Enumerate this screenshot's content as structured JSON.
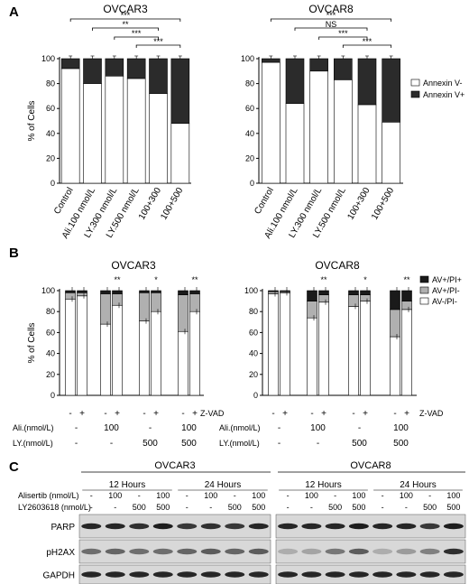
{
  "panels": {
    "A": {
      "letter": "A",
      "ylabel": "% of Cells",
      "yticks": [
        "0",
        "20",
        "40",
        "60",
        "80",
        "100"
      ],
      "legend": [
        "Annexin V-",
        "Annexin V+"
      ],
      "colors": {
        "neg": "#ffffff",
        "pos": "#2b2b2b",
        "stroke": "#000000"
      }
    },
    "B": {
      "letter": "B",
      "ylabel": "% of Cells",
      "yticks": [
        "0",
        "20",
        "40",
        "60",
        "80",
        "100"
      ],
      "legend": [
        "AV+/PI+",
        "AV+/PI-",
        "AV-/PI-"
      ],
      "colors": {
        "pi_pos": "#1a1a1a",
        "pi_neg": "#b0b0b0",
        "neg": "#ffffff"
      },
      "row_labels": {
        "zvad": "Z-VAD",
        "ali": "Ali.(nmol/L)",
        "ly": "LY.(nmol/L)"
      },
      "zvad_marks": [
        "-",
        "+",
        "-",
        "+",
        "-",
        "+",
        "-",
        "+"
      ],
      "ali_marks": [
        "-",
        "100",
        "-",
        "100"
      ],
      "ly_marks": [
        "-",
        "-",
        "500",
        "500"
      ]
    },
    "C": {
      "letter": "C",
      "row_labels": {
        "alisertib": "Alisertib (nmol/L)",
        "ly": "LY2603618 (nmol/L)"
      },
      "proteins": [
        "PARP",
        "pH2AX",
        "GAPDH"
      ],
      "cell_lines": [
        "OVCAR3",
        "OVCAR8"
      ],
      "timepoints": [
        "12 Hours",
        "24 Hours"
      ],
      "alisertib_marks": [
        "-",
        "100",
        "-",
        "100"
      ],
      "ly_marks": [
        "-",
        "-",
        "500",
        "500"
      ]
    }
  },
  "chart_data": [
    {
      "type": "bar",
      "panel": "A",
      "title": "OVCAR3",
      "ylabel": "% of Cells",
      "ylim": [
        0,
        100
      ],
      "stacked": true,
      "categories": [
        "Control",
        "Ali.100 nmol/L",
        "LY.300 nmol/L",
        "LY.500 nmol/L",
        "100+300",
        "100+500"
      ],
      "series": [
        {
          "name": "Annexin V-",
          "values": [
            92,
            80,
            86,
            84,
            72,
            48
          ]
        },
        {
          "name": "Annexin V+",
          "values": [
            8,
            20,
            14,
            16,
            28,
            52
          ]
        }
      ],
      "significance": [
        {
          "from": 0,
          "to": 5,
          "label": "***"
        },
        {
          "from": 1,
          "to": 4,
          "label": "**"
        },
        {
          "from": 2,
          "to": 4,
          "label": "***"
        },
        {
          "from": 3,
          "to": 5,
          "label": "***"
        }
      ]
    },
    {
      "type": "bar",
      "panel": "A",
      "title": "OVCAR8",
      "ylabel": "% of Cells",
      "ylim": [
        0,
        100
      ],
      "stacked": true,
      "categories": [
        "Control",
        "Ali.100 nmol/L",
        "LY.300 nmol/L",
        "LY.500 nmol/L",
        "100+300",
        "100+500"
      ],
      "series": [
        {
          "name": "Annexin V-",
          "values": [
            97,
            64,
            90,
            83,
            63,
            49
          ]
        },
        {
          "name": "Annexin V+",
          "values": [
            3,
            36,
            10,
            17,
            37,
            51
          ]
        }
      ],
      "significance": [
        {
          "from": 0,
          "to": 5,
          "label": "***"
        },
        {
          "from": 1,
          "to": 4,
          "label": "NS"
        },
        {
          "from": 2,
          "to": 4,
          "label": "***"
        },
        {
          "from": 3,
          "to": 5,
          "label": "***"
        }
      ]
    },
    {
      "type": "bar",
      "panel": "B",
      "title": "OVCAR3",
      "ylabel": "% of Cells",
      "ylim": [
        0,
        100
      ],
      "stacked": true,
      "series": [
        {
          "name": "AV-/PI-",
          "values": [
            92,
            95,
            68,
            86,
            71,
            80,
            61,
            80
          ]
        },
        {
          "name": "AV+/PI-",
          "values": [
            6,
            3,
            29,
            11,
            27,
            18,
            35,
            17
          ]
        },
        {
          "name": "AV+/PI+",
          "values": [
            2,
            2,
            3,
            3,
            2,
            2,
            4,
            3
          ]
        }
      ],
      "significance": [
        {
          "group": 1,
          "label": "**"
        },
        {
          "group": 2,
          "label": "*"
        },
        {
          "group": 3,
          "label": "**"
        }
      ]
    },
    {
      "type": "bar",
      "panel": "B",
      "title": "OVCAR8",
      "ylabel": "% of Cells",
      "ylim": [
        0,
        100
      ],
      "stacked": true,
      "series": [
        {
          "name": "AV-/PI-",
          "values": [
            97,
            98,
            74,
            89,
            85,
            90,
            56,
            82
          ]
        },
        {
          "name": "AV+/PI-",
          "values": [
            2,
            1,
            16,
            7,
            11,
            6,
            26,
            8
          ]
        },
        {
          "name": "AV+/PI+",
          "values": [
            1,
            1,
            10,
            4,
            4,
            4,
            18,
            10
          ]
        }
      ],
      "significance": [
        {
          "group": 1,
          "label": "**"
        },
        {
          "group": 2,
          "label": "*"
        },
        {
          "group": 3,
          "label": "**"
        }
      ]
    }
  ]
}
